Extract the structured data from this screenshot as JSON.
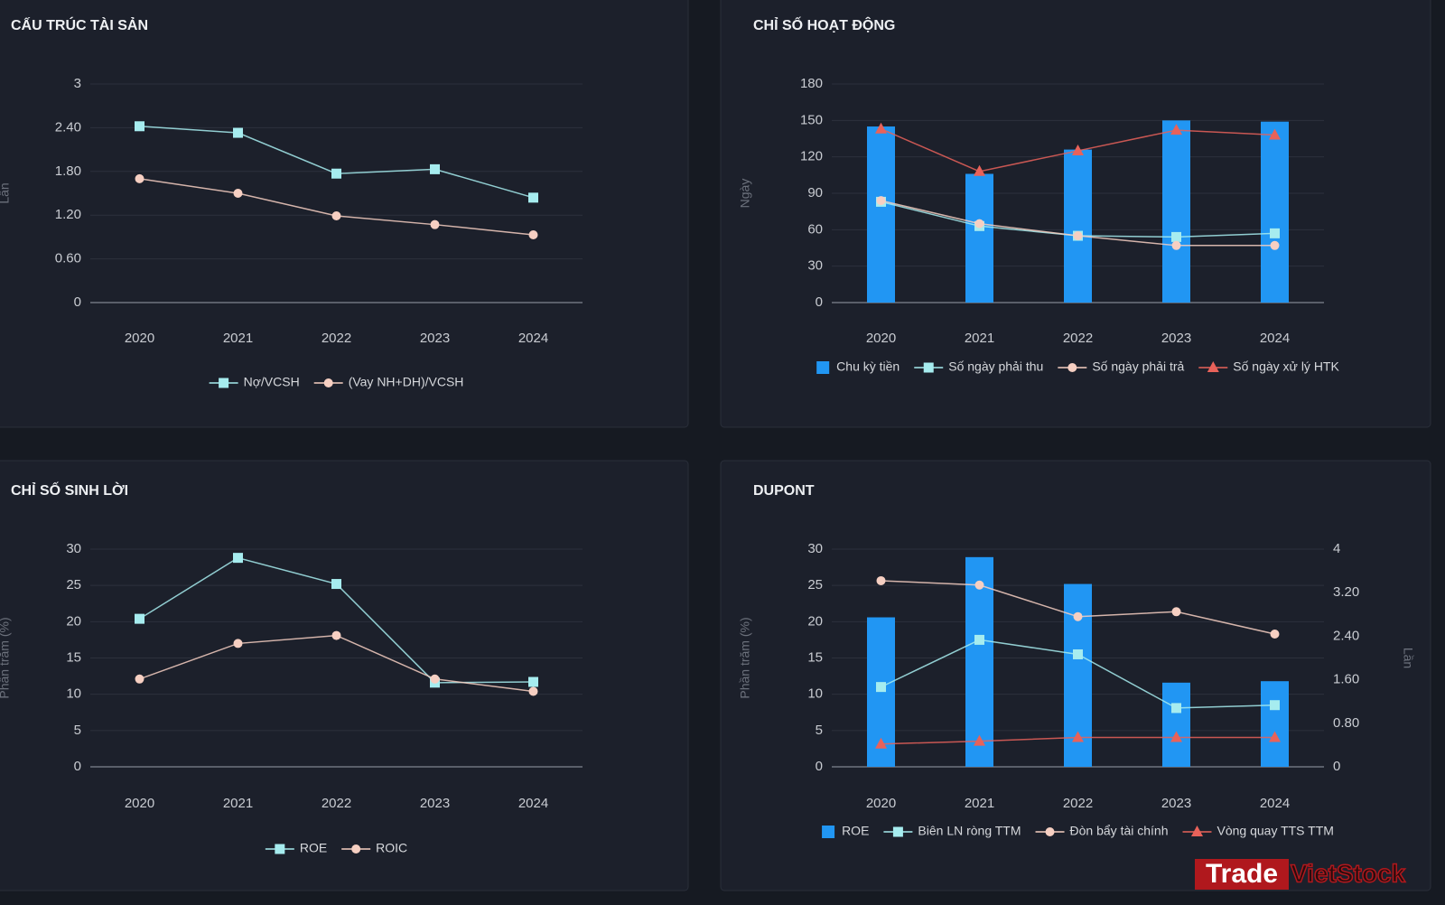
{
  "chart_data": [
    {
      "type": "line",
      "title": "CẤU TRÚC TÀI SẢN",
      "ylabel": "Lần",
      "categories": [
        "2020",
        "2021",
        "2022",
        "2023",
        "2024"
      ],
      "ylim": [
        0,
        3
      ],
      "yticks": [
        0,
        {
          "value": 0.6,
          "label": "0.60"
        },
        {
          "value": 1.2,
          "label": "1.20"
        },
        {
          "value": 1.8,
          "label": "1.80"
        },
        {
          "value": 2.4,
          "label": "2.40"
        },
        3
      ],
      "grid": true,
      "series": [
        {
          "name": "Nợ/VCSH",
          "type": "line",
          "marker": "square",
          "color": "#a6ecef",
          "values": [
            2.42,
            2.33,
            1.77,
            1.83,
            1.44
          ]
        },
        {
          "name": "(Vay NH+DH)/VCSH",
          "type": "line",
          "marker": "circle",
          "color": "#f6cfc2",
          "values": [
            1.7,
            1.5,
            1.19,
            1.07,
            0.93
          ]
        }
      ]
    },
    {
      "type": "combo",
      "title": "CHỈ SỐ HOẠT ĐỘNG",
      "ylabel": "Ngày",
      "categories": [
        "2020",
        "2021",
        "2022",
        "2023",
        "2024"
      ],
      "ylim": [
        0,
        180
      ],
      "yticks": [
        0,
        30,
        60,
        90,
        120,
        150,
        180
      ],
      "grid": true,
      "series": [
        {
          "name": "Chu kỳ tiền",
          "type": "bar",
          "color": "#2196f3",
          "values": [
            145,
            106,
            126,
            150,
            149
          ]
        },
        {
          "name": "Số ngày phải thu",
          "type": "line",
          "marker": "square",
          "color": "#a6ecef",
          "values": [
            83,
            63,
            55,
            54,
            57
          ]
        },
        {
          "name": "Số ngày phải trả",
          "type": "line",
          "marker": "circle",
          "color": "#f6cfc2",
          "values": [
            84,
            65,
            55,
            47,
            47
          ]
        },
        {
          "name": "Số ngày xử lý HTK",
          "type": "line",
          "marker": "triangle",
          "color": "#e8625a",
          "values": [
            143,
            108,
            125,
            142,
            138
          ]
        }
      ]
    },
    {
      "type": "line",
      "title": "CHỈ SỐ SINH LỜI",
      "ylabel": "Phần trăm (%)",
      "categories": [
        "2020",
        "2021",
        "2022",
        "2023",
        "2024"
      ],
      "ylim": [
        0,
        30
      ],
      "yticks": [
        0,
        5,
        10,
        15,
        20,
        25,
        30
      ],
      "grid": true,
      "series": [
        {
          "name": "ROE",
          "type": "line",
          "marker": "square",
          "color": "#a6ecef",
          "values": [
            20.4,
            28.8,
            25.2,
            11.6,
            11.7
          ]
        },
        {
          "name": "ROIC",
          "type": "line",
          "marker": "circle",
          "color": "#f6cfc2",
          "values": [
            12.1,
            17.0,
            18.1,
            12.1,
            10.4
          ]
        }
      ]
    },
    {
      "type": "combo",
      "title": "DUPONT",
      "ylabel": "Phần trăm (%)",
      "y2label": "Lần",
      "categories": [
        "2020",
        "2021",
        "2022",
        "2023",
        "2024"
      ],
      "ylim": [
        0,
        30
      ],
      "yticks": [
        0,
        5,
        10,
        15,
        20,
        25,
        30
      ],
      "grid": true,
      "y2lim": [
        0,
        4
      ],
      "y2ticks": [
        0,
        {
          "value": 0.8,
          "label": "0.80"
        },
        {
          "value": 1.6,
          "label": "1.60"
        },
        {
          "value": 2.4,
          "label": "2.40"
        },
        {
          "value": 3.2,
          "label": "3.20"
        },
        4
      ],
      "series": [
        {
          "name": "ROE",
          "type": "bar",
          "color": "#2196f3",
          "values": [
            20.6,
            28.9,
            25.2,
            11.6,
            11.8
          ]
        },
        {
          "name": "Biên LN ròng TTM",
          "type": "line",
          "marker": "square",
          "color": "#a6ecef",
          "values": [
            11.0,
            17.5,
            15.5,
            8.1,
            8.5
          ]
        },
        {
          "name": "Đòn bẩy tài chính",
          "type": "line",
          "marker": "circle",
          "color": "#f6cfc2",
          "axis": "y2",
          "values": [
            3.42,
            3.34,
            2.76,
            2.85,
            2.44
          ]
        },
        {
          "name": "Vòng quay TTS TTM",
          "type": "line",
          "marker": "triangle",
          "color": "#e8625a",
          "axis": "y2",
          "values": [
            0.42,
            0.47,
            0.54,
            0.54,
            0.54
          ]
        }
      ]
    }
  ],
  "watermark": {
    "brand": "Trade",
    "name": "VietStock"
  }
}
